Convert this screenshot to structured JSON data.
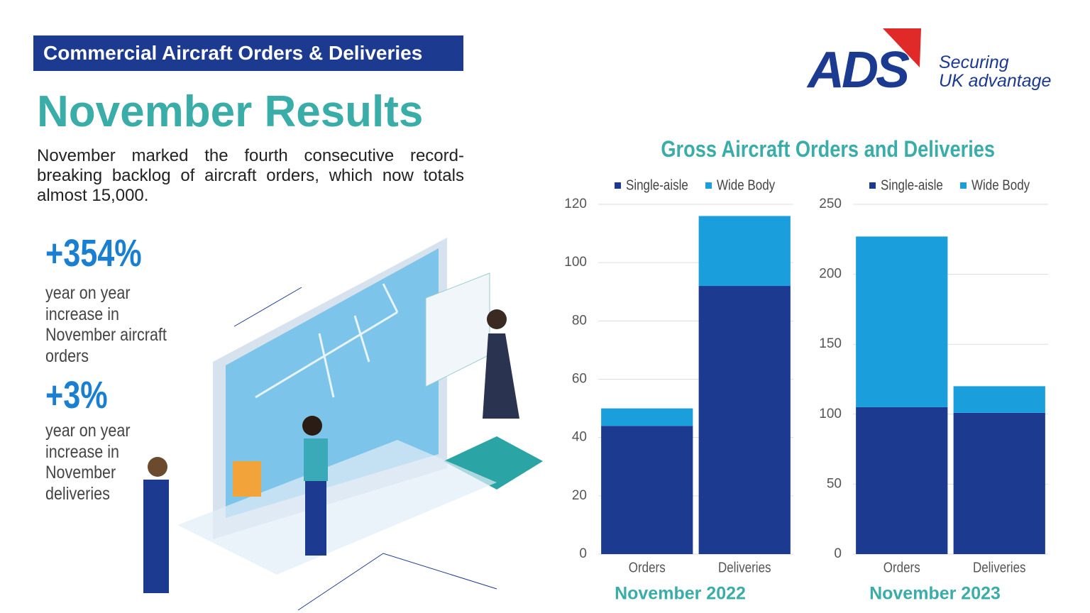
{
  "header": {
    "banner": "Commercial Aircraft Orders & Deliveries",
    "title": "November Results",
    "intro": "November marked the fourth consecutive record-breaking backlog of aircraft orders, which now totals almost 15,000."
  },
  "logo": {
    "mark": "ADS",
    "tagline": [
      "Securing",
      "UK advantage"
    ]
  },
  "stats": [
    {
      "value": "+354%",
      "text": "year on year increase in November aircraft orders"
    },
    {
      "value": "+3%",
      "text": "year on year increase in November deliveries"
    }
  ],
  "charts_title": "Gross Aircraft Orders and Deliveries",
  "chart_data": [
    {
      "type": "bar",
      "stacked": true,
      "xlabel": "November 2022",
      "categories": [
        "Orders",
        "Deliveries"
      ],
      "series": [
        {
          "name": "Single-aisle",
          "color": "#1c3a8f",
          "values": [
            44,
            92
          ]
        },
        {
          "name": "Wide Body",
          "color": "#1a9fdc",
          "values": [
            6,
            24
          ]
        }
      ],
      "ylim": [
        0,
        120
      ],
      "yticks": [
        0,
        20,
        40,
        60,
        80,
        100,
        120
      ],
      "grid": true,
      "legend": "top"
    },
    {
      "type": "bar",
      "stacked": true,
      "xlabel": "November 2023",
      "categories": [
        "Orders",
        "Deliveries"
      ],
      "series": [
        {
          "name": "Single-aisle",
          "color": "#1c3a8f",
          "values": [
            105,
            101
          ]
        },
        {
          "name": "Wide Body",
          "color": "#1a9fdc",
          "values": [
            122,
            19
          ]
        }
      ],
      "ylim": [
        0,
        250
      ],
      "yticks": [
        0,
        50,
        100,
        150,
        200,
        250
      ],
      "grid": true,
      "legend": "top"
    }
  ]
}
